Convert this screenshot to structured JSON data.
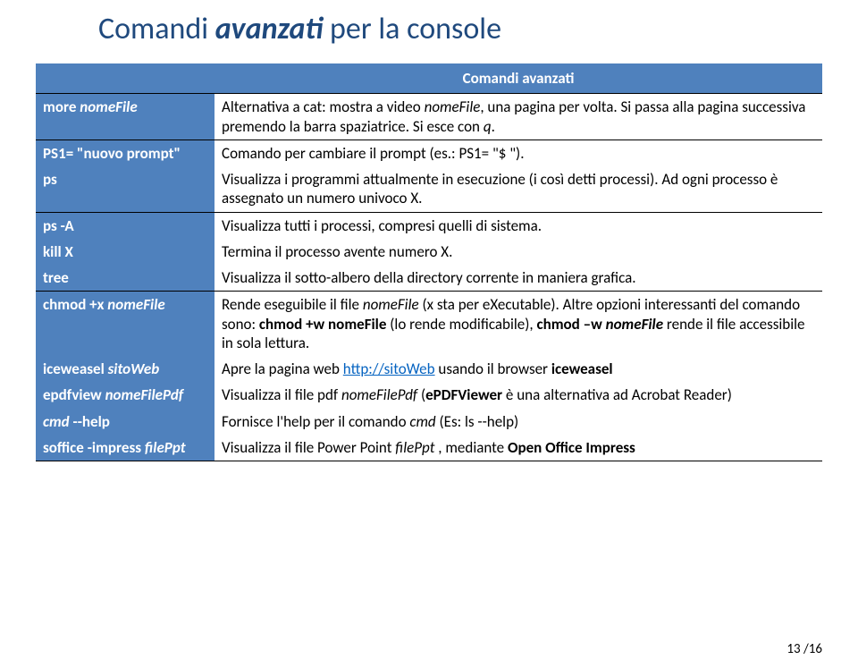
{
  "title": {
    "pre": "Comandi ",
    "em": "avanzati",
    "post": " per la console",
    "color": "#1f497d"
  },
  "table": {
    "header_text": "Comandi avanzati",
    "header_bg": "#4f81bd",
    "header_color": "#ffffff",
    "cmd_bg": "#4f81bd",
    "cmd_color": "#ffffff",
    "rows": [
      {
        "cmd_html": "more <span class=\"italic\">nomeFile</span>",
        "desc_html": "Alternativa a cat: mostra a video <span class=\"italic\">nomeFile</span>, una pagina per volta. Si passa alla pagina successiva premendo la barra spaziatrice. Si esce con <span class=\"italic\">q</span>.",
        "sep": true
      },
      {
        "cmd_html": "PS1= \"nuovo prompt\"",
        "desc_html": "Comando per cambiare il prompt (es.: PS1= \"$ \").",
        "sep": false
      },
      {
        "cmd_html": "ps",
        "desc_html": "Visualizza i programmi attualmente in esecuzione (i così detti processi). Ad ogni processo è assegnato un numero univoco X.",
        "sep": true
      },
      {
        "cmd_html": "ps -A",
        "desc_html": "Visualizza tutti i processi, compresi quelli di sistema.",
        "sep": false
      },
      {
        "cmd_html": "kill X",
        "desc_html": "Termina il processo avente numero X.",
        "sep": false
      },
      {
        "cmd_html": "tree",
        "desc_html": "Visualizza il sotto-albero della directory corrente in maniera grafica.",
        "sep": true
      },
      {
        "cmd_html": "chmod +x <span class=\"italic\">nomeFile</span>",
        "desc_html": "Rende eseguibile il file <span class=\"italic\">nomeFile</span> (x sta per eXecutable). Altre opzioni interessanti del comando sono: <span class=\"bold\">chmod +w nomeFile</span> (lo rende modificabile), <span class=\"bold\">chmod &ndash;w <span class=\"italic\">nomeFile</span></span> rende il file accessibile in sola lettura.",
        "sep": false
      },
      {
        "cmd_html": "iceweasel <span class=\"italic\">sitoWeb</span>",
        "desc_html": "Apre la pagina web <span class=\"link\">http://sitoWeb</span> usando il browser <span class=\"bold\">iceweasel</span>",
        "sep": false
      },
      {
        "cmd_html": "epdfview <span class=\"italic\">nomeFilePdf</span>",
        "desc_html": "Visualizza il file pdf <span class=\"italic\">nomeFilePdf</span> (<span class=\"bold\">ePDFViewer</span> è una alternativa ad Acrobat Reader)",
        "sep": false
      },
      {
        "cmd_html": "<span class=\"italic\">cmd</span> --help",
        "desc_html": "Fornisce l'help per il comando <span class=\"italic\">cmd</span> (Es: ls --help)",
        "sep": false
      },
      {
        "cmd_html": "soffice -impress <span class=\"italic\">filePpt</span>",
        "desc_html": "Visualizza il file Power Point <span class=\"italic\">filePpt</span> , mediante <span class=\"bold\">Open Office Impress</span>",
        "sep": false
      }
    ]
  },
  "footer": {
    "page": "13",
    "sep": " /",
    "total": "16"
  }
}
